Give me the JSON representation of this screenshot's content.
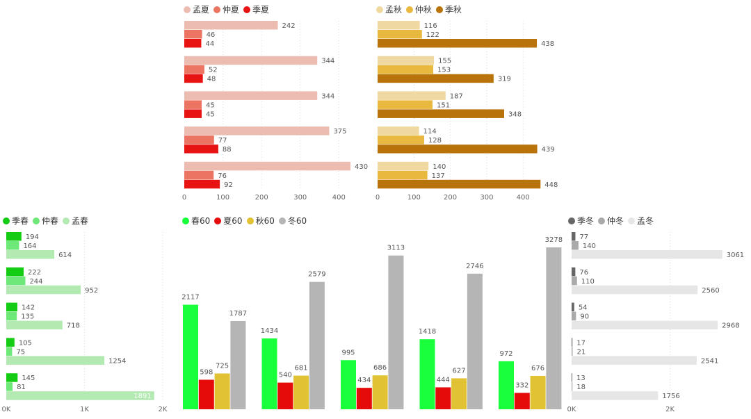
{
  "chart_data": [
    {
      "id": "summer",
      "type": "bar",
      "orientation": "horizontal",
      "series": [
        {
          "name": "孟夏",
          "color": "#edbcb1",
          "values": [
            242,
            344,
            344,
            375,
            430
          ]
        },
        {
          "name": "仲夏",
          "color": "#ec7462",
          "values": [
            46,
            52,
            45,
            77,
            76
          ]
        },
        {
          "name": "季夏",
          "color": "#e81414",
          "values": [
            44,
            48,
            45,
            88,
            92
          ]
        }
      ],
      "ticks": [
        0,
        100,
        200,
        300,
        400
      ],
      "tick_labels": [
        "0",
        "100",
        "200",
        "300",
        "400"
      ],
      "xlim": [
        0,
        450
      ]
    },
    {
      "id": "autumn",
      "type": "bar",
      "orientation": "horizontal",
      "series": [
        {
          "name": "孟秋",
          "color": "#f0d9a1",
          "values": [
            116,
            155,
            187,
            114,
            140
          ]
        },
        {
          "name": "仲秋",
          "color": "#e8b83f",
          "values": [
            122,
            153,
            151,
            128,
            137
          ]
        },
        {
          "name": "季秋",
          "color": "#b8730a",
          "values": [
            438,
            319,
            348,
            439,
            448
          ]
        }
      ],
      "ticks": [
        0,
        100,
        200,
        300,
        400
      ],
      "tick_labels": [
        "0",
        "100",
        "200",
        "300",
        "400"
      ],
      "xlim": [
        0,
        450
      ]
    },
    {
      "id": "spring",
      "type": "bar",
      "orientation": "horizontal",
      "series": [
        {
          "name": "季春",
          "color": "#13cc13",
          "values": [
            194,
            222,
            142,
            105,
            145
          ]
        },
        {
          "name": "仲春",
          "color": "#6fe87a",
          "values": [
            164,
            244,
            135,
            75,
            81
          ]
        },
        {
          "name": "孟春",
          "color": "#b2eab2",
          "values": [
            614,
            952,
            718,
            1254,
            1891
          ]
        }
      ],
      "ticks": [
        0,
        1000,
        2000
      ],
      "tick_labels": [
        "0K",
        "1K",
        "2K"
      ],
      "xlim": [
        0,
        2000
      ]
    },
    {
      "id": "main",
      "type": "bar",
      "orientation": "vertical",
      "series": [
        {
          "name": "春60",
          "color": "#1aff3c",
          "values": [
            2117,
            1434,
            995,
            1418,
            972
          ]
        },
        {
          "name": "夏60",
          "color": "#e50b0b",
          "values": [
            598,
            540,
            434,
            444,
            332
          ]
        },
        {
          "name": "秋60",
          "color": "#e0c232",
          "values": [
            725,
            681,
            686,
            627,
            676
          ]
        },
        {
          "name": "冬60",
          "color": "#b5b5b5",
          "values": [
            1787,
            2579,
            3113,
            2746,
            3278
          ]
        }
      ],
      "ylim": [
        0,
        3500
      ]
    },
    {
      "id": "winter",
      "type": "bar",
      "orientation": "horizontal",
      "series": [
        {
          "name": "季冬",
          "color": "#666666",
          "values": [
            77,
            76,
            54,
            17,
            13
          ]
        },
        {
          "name": "仲冬",
          "color": "#aaaaaa",
          "values": [
            140,
            110,
            90,
            21,
            18
          ]
        },
        {
          "name": "孟冬",
          "color": "#e6e6e6",
          "values": [
            3061,
            2560,
            2968,
            2541,
            1756
          ]
        }
      ],
      "ticks": [
        0,
        2000
      ],
      "tick_labels": [
        "0K",
        "2K"
      ],
      "xlim": [
        0,
        3200
      ]
    }
  ]
}
